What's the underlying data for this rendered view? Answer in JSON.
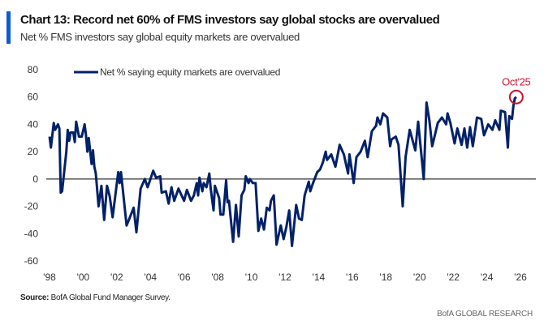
{
  "header": {
    "title": "Chart 13: Record net 60% of FMS investors say global stocks are overvalued",
    "subtitle": "Net % FMS investors say global equity markets are overvalued"
  },
  "footer": {
    "source_label": "Source:",
    "source_text": " BofA Global Fund Manager Survey.",
    "brand": "BofA GLOBAL RESEARCH"
  },
  "colors": {
    "series": "#012169",
    "annotation": "#c8102e",
    "accent_bar": "#0a5bd6",
    "zero_line": "#333333"
  },
  "chart_data": {
    "type": "line",
    "title": "Chart 13: Record net 60% of FMS investors say global stocks are overvalued",
    "subtitle": "Net % FMS investors say global equity markets are overvalued",
    "xlabel": "",
    "ylabel": "",
    "ylim": [
      -60,
      80
    ],
    "xlim": [
      "1998-01",
      "2026-01"
    ],
    "yticks": [
      80,
      60,
      40,
      20,
      0,
      -20,
      -40,
      -60
    ],
    "xticks": [
      {
        "year": 1998,
        "label": "'98"
      },
      {
        "year": 2000,
        "label": "'00"
      },
      {
        "year": 2002,
        "label": "'02"
      },
      {
        "year": 2004,
        "label": "'04"
      },
      {
        "year": 2006,
        "label": "'06"
      },
      {
        "year": 2008,
        "label": "'08"
      },
      {
        "year": 2010,
        "label": "'10"
      },
      {
        "year": 2012,
        "label": "'12"
      },
      {
        "year": 2014,
        "label": "'14"
      },
      {
        "year": 2016,
        "label": "'16"
      },
      {
        "year": 2018,
        "label": "'18"
      },
      {
        "year": 2020,
        "label": "'20"
      },
      {
        "year": 2022,
        "label": "'22"
      },
      {
        "year": 2024,
        "label": "'24"
      },
      {
        "year": 2026,
        "label": "'26"
      }
    ],
    "grid": false,
    "legend": {
      "placement": "top-left",
      "entries": [
        "Net % saying equity markets are overvalued"
      ]
    },
    "annotation": {
      "label": "Oct'25",
      "x": "2025-10",
      "y": 60,
      "shape": "circle"
    },
    "series": [
      {
        "name": "Net % saying equity markets are overvalued",
        "points": [
          [
            "1998-01",
            31
          ],
          [
            "1998-02",
            23
          ],
          [
            "1998-04",
            41
          ],
          [
            "1998-05",
            36
          ],
          [
            "1998-07",
            40
          ],
          [
            "1998-08",
            37
          ],
          [
            "1998-09",
            -10
          ],
          [
            "1998-10",
            -9
          ],
          [
            "1999-01",
            20
          ],
          [
            "1999-02",
            36
          ],
          [
            "1999-03",
            28
          ],
          [
            "1999-04",
            34
          ],
          [
            "1999-06",
            34
          ],
          [
            "1999-07",
            27
          ],
          [
            "1999-08",
            42
          ],
          [
            "1999-10",
            31
          ],
          [
            "1999-12",
            31
          ],
          [
            "2000-02",
            40
          ],
          [
            "2000-03",
            32
          ],
          [
            "2000-04",
            20
          ],
          [
            "2000-05",
            30
          ],
          [
            "2000-07",
            11
          ],
          [
            "2000-08",
            21
          ],
          [
            "2000-09",
            9
          ],
          [
            "2000-10",
            4
          ],
          [
            "2000-12",
            -20
          ],
          [
            "2001-02",
            -5
          ],
          [
            "2001-04",
            -30
          ],
          [
            "2001-06",
            -5
          ],
          [
            "2001-08",
            -13
          ],
          [
            "2001-10",
            -28
          ],
          [
            "2002-02",
            5
          ],
          [
            "2002-03",
            -3
          ],
          [
            "2002-04",
            5
          ],
          [
            "2002-08",
            -34
          ],
          [
            "2002-10",
            -29
          ],
          [
            "2003-01",
            -21
          ],
          [
            "2003-03",
            -39
          ],
          [
            "2003-06",
            -7
          ],
          [
            "2003-09",
            0
          ],
          [
            "2003-11",
            -6
          ],
          [
            "2004-01",
            0
          ],
          [
            "2004-03",
            6
          ],
          [
            "2004-05",
            1
          ],
          [
            "2004-08",
            2
          ],
          [
            "2004-09",
            -10
          ],
          [
            "2004-12",
            -9
          ],
          [
            "2005-02",
            -18
          ],
          [
            "2005-04",
            -6
          ],
          [
            "2005-06",
            -16
          ],
          [
            "2005-09",
            -7
          ],
          [
            "2006-01",
            -16
          ],
          [
            "2006-03",
            -8
          ],
          [
            "2006-06",
            -16
          ],
          [
            "2006-08",
            -12
          ],
          [
            "2006-10",
            -3
          ],
          [
            "2006-11",
            -12
          ],
          [
            "2006-12",
            1
          ],
          [
            "2007-02",
            -9
          ],
          [
            "2007-03",
            -3
          ],
          [
            "2007-05",
            -6
          ],
          [
            "2007-07",
            4
          ],
          [
            "2007-08",
            -7
          ],
          [
            "2007-10",
            -23
          ],
          [
            "2007-11",
            -5
          ],
          [
            "2008-02",
            -14
          ],
          [
            "2008-03",
            -26
          ],
          [
            "2008-05",
            -26
          ],
          [
            "2008-07",
            -1
          ],
          [
            "2008-08",
            -17
          ],
          [
            "2008-09",
            -16
          ],
          [
            "2008-12",
            -46
          ],
          [
            "2009-02",
            -19
          ],
          [
            "2009-04",
            -42
          ],
          [
            "2009-06",
            -12
          ],
          [
            "2009-08",
            -8
          ],
          [
            "2009-09",
            2
          ],
          [
            "2009-11",
            -3
          ],
          [
            "2009-12",
            0
          ],
          [
            "2010-02",
            -3
          ],
          [
            "2010-04",
            -3
          ],
          [
            "2010-06",
            -38
          ],
          [
            "2010-08",
            -29
          ],
          [
            "2010-10",
            -37
          ],
          [
            "2010-12",
            -21
          ],
          [
            "2011-02",
            -23
          ],
          [
            "2011-03",
            -16
          ],
          [
            "2011-05",
            -12
          ],
          [
            "2011-07",
            -48
          ],
          [
            "2011-10",
            -34
          ],
          [
            "2011-12",
            -44
          ],
          [
            "2012-02",
            -35
          ],
          [
            "2012-04",
            -23
          ],
          [
            "2012-06",
            -49
          ],
          [
            "2012-09",
            -19
          ],
          [
            "2012-11",
            -29
          ],
          [
            "2013-01",
            -30
          ],
          [
            "2013-03",
            -12
          ],
          [
            "2013-06",
            -2
          ],
          [
            "2013-07",
            -9
          ],
          [
            "2013-09",
            -3
          ],
          [
            "2013-12",
            5
          ],
          [
            "2014-02",
            7
          ],
          [
            "2014-04",
            12
          ],
          [
            "2014-06",
            20
          ],
          [
            "2014-07",
            14
          ],
          [
            "2014-10",
            18
          ],
          [
            "2015-01",
            9
          ],
          [
            "2015-04",
            25
          ],
          [
            "2015-07",
            18
          ],
          [
            "2015-10",
            4
          ],
          [
            "2015-11",
            18
          ],
          [
            "2016-02",
            -3
          ],
          [
            "2016-04",
            16
          ],
          [
            "2016-07",
            20
          ],
          [
            "2016-10",
            28
          ],
          [
            "2016-12",
            16
          ],
          [
            "2017-03",
            35
          ],
          [
            "2017-06",
            39
          ],
          [
            "2017-07",
            45
          ],
          [
            "2017-09",
            40
          ],
          [
            "2017-11",
            48
          ],
          [
            "2018-02",
            45
          ],
          [
            "2018-04",
            24
          ],
          [
            "2018-05",
            29
          ],
          [
            "2018-08",
            31
          ],
          [
            "2018-10",
            25
          ],
          [
            "2019-01",
            -20
          ],
          [
            "2019-03",
            16
          ],
          [
            "2019-06",
            36
          ],
          [
            "2019-10",
            21
          ],
          [
            "2019-12",
            42
          ],
          [
            "2020-04",
            0
          ],
          [
            "2020-06",
            56
          ],
          [
            "2020-08",
            43
          ],
          [
            "2020-10",
            24
          ],
          [
            "2021-02",
            41
          ],
          [
            "2021-05",
            45
          ],
          [
            "2021-08",
            40
          ],
          [
            "2021-09",
            48
          ],
          [
            "2021-11",
            41
          ],
          [
            "2022-02",
            26
          ],
          [
            "2022-04",
            37
          ],
          [
            "2022-07",
            25
          ],
          [
            "2022-09",
            37
          ],
          [
            "2022-11",
            23
          ],
          [
            "2023-01",
            38
          ],
          [
            "2023-03",
            24
          ],
          [
            "2023-06",
            45
          ],
          [
            "2023-09",
            44
          ],
          [
            "2023-11",
            32
          ],
          [
            "2024-02",
            40
          ],
          [
            "2024-05",
            36
          ],
          [
            "2024-07",
            43
          ],
          [
            "2024-10",
            36
          ],
          [
            "2024-11",
            50
          ],
          [
            "2025-02",
            49
          ],
          [
            "2025-04",
            23
          ],
          [
            "2025-05",
            46
          ],
          [
            "2025-07",
            44
          ],
          [
            "2025-08",
            54
          ],
          [
            "2025-09",
            59
          ],
          [
            "2025-10",
            60
          ]
        ]
      }
    ]
  }
}
